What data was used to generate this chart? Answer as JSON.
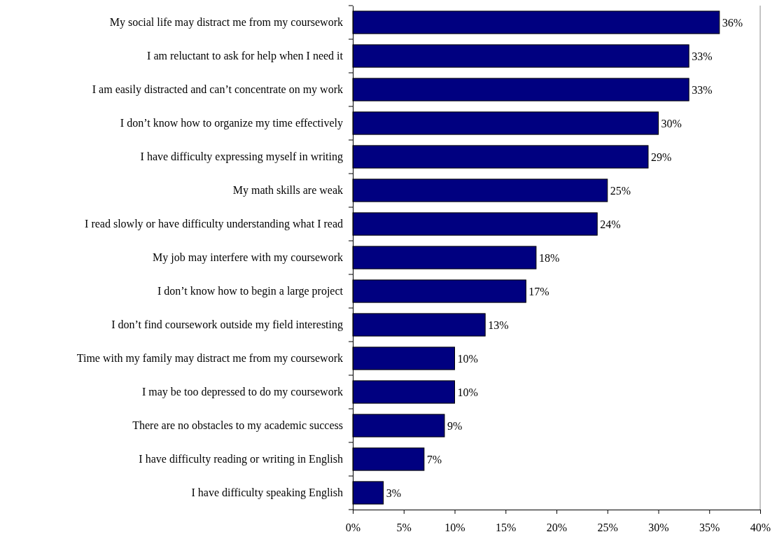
{
  "chart_data": {
    "type": "bar",
    "orientation": "horizontal",
    "categories": [
      "My social life may distract me from my coursework",
      "I am reluctant to ask for help when I need it",
      "I am easily distracted and can’t concentrate on my work",
      "I don’t know how to organize my time effectively",
      "I have difficulty expressing myself in writing",
      "My math skills are weak",
      "I read slowly or have difficulty understanding what I read",
      "My job may interfere with my coursework",
      "I don’t know how to begin a large project",
      "I don’t find coursework outside my field interesting",
      "Time with my family may distract me from my coursework",
      "I may be too depressed to do my coursework",
      "There are no obstacles to my academic success",
      "I have difficulty reading or writing in English",
      "I have difficulty speaking English"
    ],
    "values": [
      36,
      33,
      33,
      30,
      29,
      25,
      24,
      18,
      17,
      13,
      10,
      10,
      9,
      7,
      3
    ],
    "value_labels": [
      "36%",
      "33%",
      "33%",
      "30%",
      "29%",
      "25%",
      "24%",
      "18%",
      "17%",
      "13%",
      "10%",
      "10%",
      "9%",
      "7%",
      "3%"
    ],
    "color": "#000080",
    "xlim": [
      0,
      40
    ],
    "xticks": [
      {
        "value": 0,
        "label": "0%"
      },
      {
        "value": 5,
        "label": "5%"
      },
      {
        "value": 10,
        "label": "10%"
      },
      {
        "value": 15,
        "label": "15%"
      },
      {
        "value": 20,
        "label": "20%"
      },
      {
        "value": 25,
        "label": "25%"
      },
      {
        "value": 30,
        "label": "30%"
      },
      {
        "value": 35,
        "label": "35%"
      },
      {
        "value": 40,
        "label": "40%"
      }
    ],
    "grid": false
  }
}
